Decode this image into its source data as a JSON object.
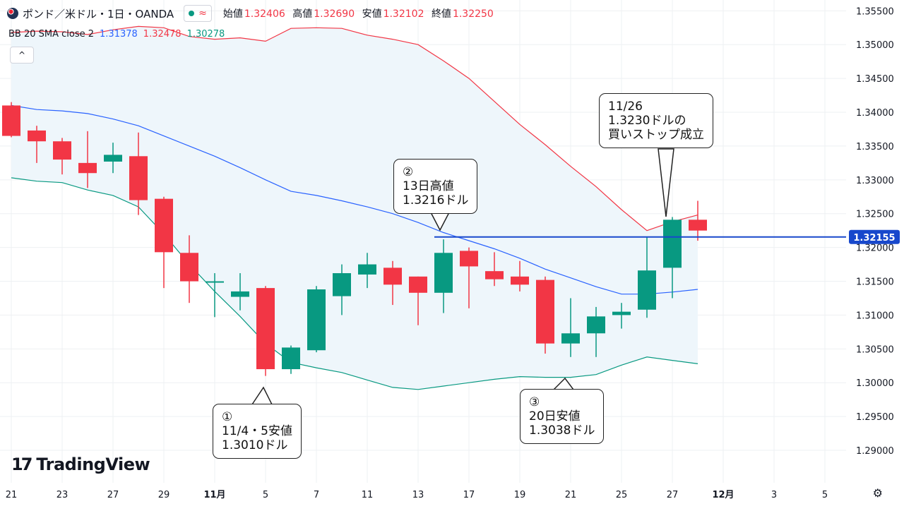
{
  "header": {
    "symbol": "ポンド／米ドル・1日・OANDA",
    "wave_glyph": "≈",
    "ohlc": [
      {
        "label": "始値",
        "value": "1.32406"
      },
      {
        "label": "高値",
        "value": "1.32690"
      },
      {
        "label": "安値",
        "value": "1.32102"
      },
      {
        "label": "終値",
        "value": "1.32250"
      }
    ]
  },
  "indicator": {
    "name": "BB 20 SMA close 2",
    "basis": "1.31378",
    "upper": "1.32478",
    "lower": "1.30278"
  },
  "collapse_glyph": "^",
  "logo": {
    "mark": "17",
    "text": "TradingView"
  },
  "settings_icon_glyph": "⚙",
  "colors": {
    "up": "#089981",
    "down": "#f23645",
    "basis": "#2962ff",
    "upper": "#f23645",
    "lower": "#089981",
    "band_fill": "#eef6fb",
    "price_line": "#1848cc",
    "grid": "#eef0f3"
  },
  "chart_data": {
    "type": "candlestick",
    "timeframe": "1日",
    "x_ticks": [
      "21",
      "23",
      "27",
      "29",
      "11月",
      "5",
      "7",
      "11",
      "13",
      "17",
      "19",
      "21",
      "25",
      "27",
      "12月",
      "3",
      "5"
    ],
    "y_ticks": [
      "1.35500",
      "1.35000",
      "1.34500",
      "1.34000",
      "1.33500",
      "1.33000",
      "1.32500",
      "1.32000",
      "1.31500",
      "1.31000",
      "1.30500",
      "1.30000",
      "1.29500",
      "1.29000"
    ],
    "ylim": [
      1.2852,
      1.3566
    ],
    "candles": [
      {
        "o": 1.341,
        "h": 1.3415,
        "l": 1.3363,
        "c": 1.3365
      },
      {
        "o": 1.3373,
        "h": 1.338,
        "l": 1.3325,
        "c": 1.3357
      },
      {
        "o": 1.3357,
        "h": 1.3362,
        "l": 1.3308,
        "c": 1.333
      },
      {
        "o": 1.3325,
        "h": 1.3372,
        "l": 1.3288,
        "c": 1.331
      },
      {
        "o": 1.3327,
        "h": 1.3355,
        "l": 1.331,
        "c": 1.3337
      },
      {
        "o": 1.3335,
        "h": 1.337,
        "l": 1.3248,
        "c": 1.327
      },
      {
        "o": 1.3272,
        "h": 1.3275,
        "l": 1.314,
        "c": 1.3193
      },
      {
        "o": 1.3192,
        "h": 1.3218,
        "l": 1.3118,
        "c": 1.315
      },
      {
        "o": 1.315,
        "h": 1.3162,
        "l": 1.3097,
        "c": 1.315
      },
      {
        "o": 1.3127,
        "h": 1.3162,
        "l": 1.3107,
        "c": 1.3135
      },
      {
        "o": 1.314,
        "h": 1.3143,
        "l": 1.301,
        "c": 1.302
      },
      {
        "o": 1.302,
        "h": 1.3055,
        "l": 1.3013,
        "c": 1.3052
      },
      {
        "o": 1.3048,
        "h": 1.3143,
        "l": 1.3045,
        "c": 1.3138
      },
      {
        "o": 1.3128,
        "h": 1.3175,
        "l": 1.31,
        "c": 1.3162
      },
      {
        "o": 1.316,
        "h": 1.3192,
        "l": 1.314,
        "c": 1.3175
      },
      {
        "o": 1.317,
        "h": 1.318,
        "l": 1.3115,
        "c": 1.3145
      },
      {
        "o": 1.3157,
        "h": 1.3157,
        "l": 1.3085,
        "c": 1.3133
      },
      {
        "o": 1.3133,
        "h": 1.3212,
        "l": 1.3103,
        "c": 1.3192
      },
      {
        "o": 1.3195,
        "h": 1.32,
        "l": 1.311,
        "c": 1.3172
      },
      {
        "o": 1.3165,
        "h": 1.3193,
        "l": 1.3143,
        "c": 1.3153
      },
      {
        "o": 1.3157,
        "h": 1.318,
        "l": 1.3135,
        "c": 1.3145
      },
      {
        "o": 1.3152,
        "h": 1.3157,
        "l": 1.3043,
        "c": 1.3058
      },
      {
        "o": 1.3058,
        "h": 1.3125,
        "l": 1.3038,
        "c": 1.3073
      },
      {
        "o": 1.3073,
        "h": 1.3112,
        "l": 1.3038,
        "c": 1.3098
      },
      {
        "o": 1.31,
        "h": 1.3118,
        "l": 1.308,
        "c": 1.3105
      },
      {
        "o": 1.3108,
        "h": 1.3215,
        "l": 1.3096,
        "c": 1.3166
      },
      {
        "o": 1.317,
        "h": 1.3245,
        "l": 1.3125,
        "c": 1.3241
      },
      {
        "o": 1.3241,
        "h": 1.3269,
        "l": 1.321,
        "c": 1.3225
      }
    ],
    "bollinger": {
      "upper": [
        1.3518,
        1.352,
        1.3519,
        1.3515,
        1.3522,
        1.3527,
        1.3525,
        1.3512,
        1.3508,
        1.351,
        1.3505,
        1.3524,
        1.3525,
        1.3524,
        1.3514,
        1.3508,
        1.35,
        1.3476,
        1.345,
        1.3416,
        1.3382,
        1.3352,
        1.332,
        1.329,
        1.3256,
        1.3225,
        1.3238,
        1.3248
      ],
      "basis": [
        1.341,
        1.3404,
        1.3402,
        1.3398,
        1.339,
        1.338,
        1.3365,
        1.335,
        1.3335,
        1.3318,
        1.33,
        1.3283,
        1.3277,
        1.3269,
        1.326,
        1.325,
        1.3237,
        1.3222,
        1.321,
        1.3198,
        1.3184,
        1.3168,
        1.3155,
        1.3142,
        1.3131,
        1.3131,
        1.3134,
        1.3138
      ],
      "lower": [
        1.3303,
        1.3298,
        1.3296,
        1.3285,
        1.3277,
        1.326,
        1.322,
        1.3175,
        1.3135,
        1.3098,
        1.3058,
        1.303,
        1.3022,
        1.3015,
        1.3004,
        1.2993,
        1.299,
        1.2995,
        1.3,
        1.3005,
        1.3009,
        1.3008,
        1.3008,
        1.3012,
        1.3026,
        1.3038,
        1.3033,
        1.3028
      ]
    },
    "horizontal_line": {
      "value": 1.32155,
      "label": "1.32155"
    },
    "annotations": [
      "①\n11/4・5安値\n1.3010ドル",
      "②\n13日高値\n1.3216ドル",
      "③\n20日安値\n1.3038ドル",
      "11/26\n1.3230ドルの\n買いストップ成立"
    ]
  }
}
